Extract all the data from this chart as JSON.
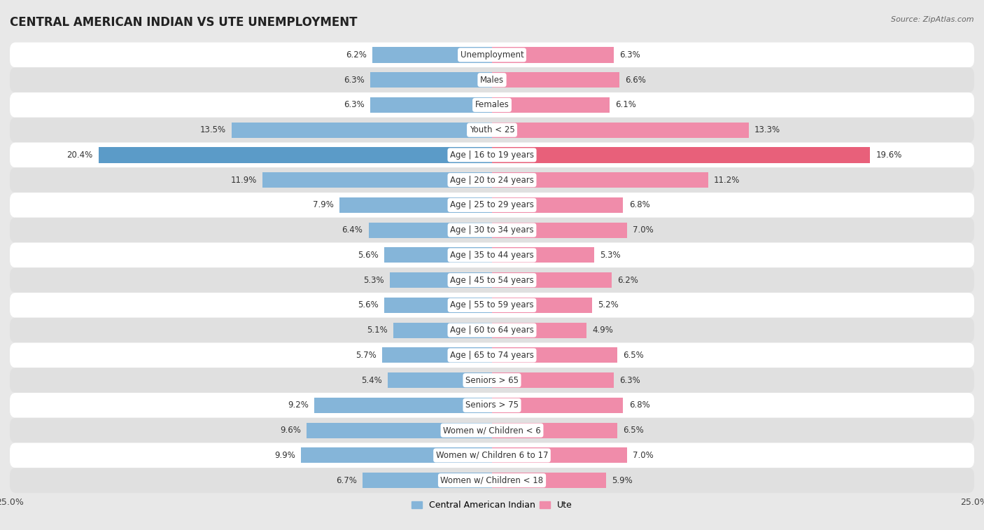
{
  "title": "CENTRAL AMERICAN INDIAN VS UTE UNEMPLOYMENT",
  "source": "Source: ZipAtlas.com",
  "categories": [
    "Unemployment",
    "Males",
    "Females",
    "Youth < 25",
    "Age | 16 to 19 years",
    "Age | 20 to 24 years",
    "Age | 25 to 29 years",
    "Age | 30 to 34 years",
    "Age | 35 to 44 years",
    "Age | 45 to 54 years",
    "Age | 55 to 59 years",
    "Age | 60 to 64 years",
    "Age | 65 to 74 years",
    "Seniors > 65",
    "Seniors > 75",
    "Women w/ Children < 6",
    "Women w/ Children 6 to 17",
    "Women w/ Children < 18"
  ],
  "left_values": [
    6.2,
    6.3,
    6.3,
    13.5,
    20.4,
    11.9,
    7.9,
    6.4,
    5.6,
    5.3,
    5.6,
    5.1,
    5.7,
    5.4,
    9.2,
    9.6,
    9.9,
    6.7
  ],
  "right_values": [
    6.3,
    6.6,
    6.1,
    13.3,
    19.6,
    11.2,
    6.8,
    7.0,
    5.3,
    6.2,
    5.2,
    4.9,
    6.5,
    6.3,
    6.8,
    6.5,
    7.0,
    5.9
  ],
  "left_color": "#85b5d9",
  "right_color": "#f08caa",
  "left_highlight_color": "#5b9bc8",
  "right_highlight_color": "#e8607a",
  "highlight_rows": [
    4
  ],
  "fig_bg": "#e8e8e8",
  "row_bg_light": "#ffffff",
  "row_bg_dark": "#e0e0e0",
  "max_value": 25.0,
  "left_label": "Central American Indian",
  "right_label": "Ute",
  "title_fontsize": 12,
  "label_fontsize": 8.5,
  "tick_fontsize": 9,
  "value_fontsize": 8.5
}
